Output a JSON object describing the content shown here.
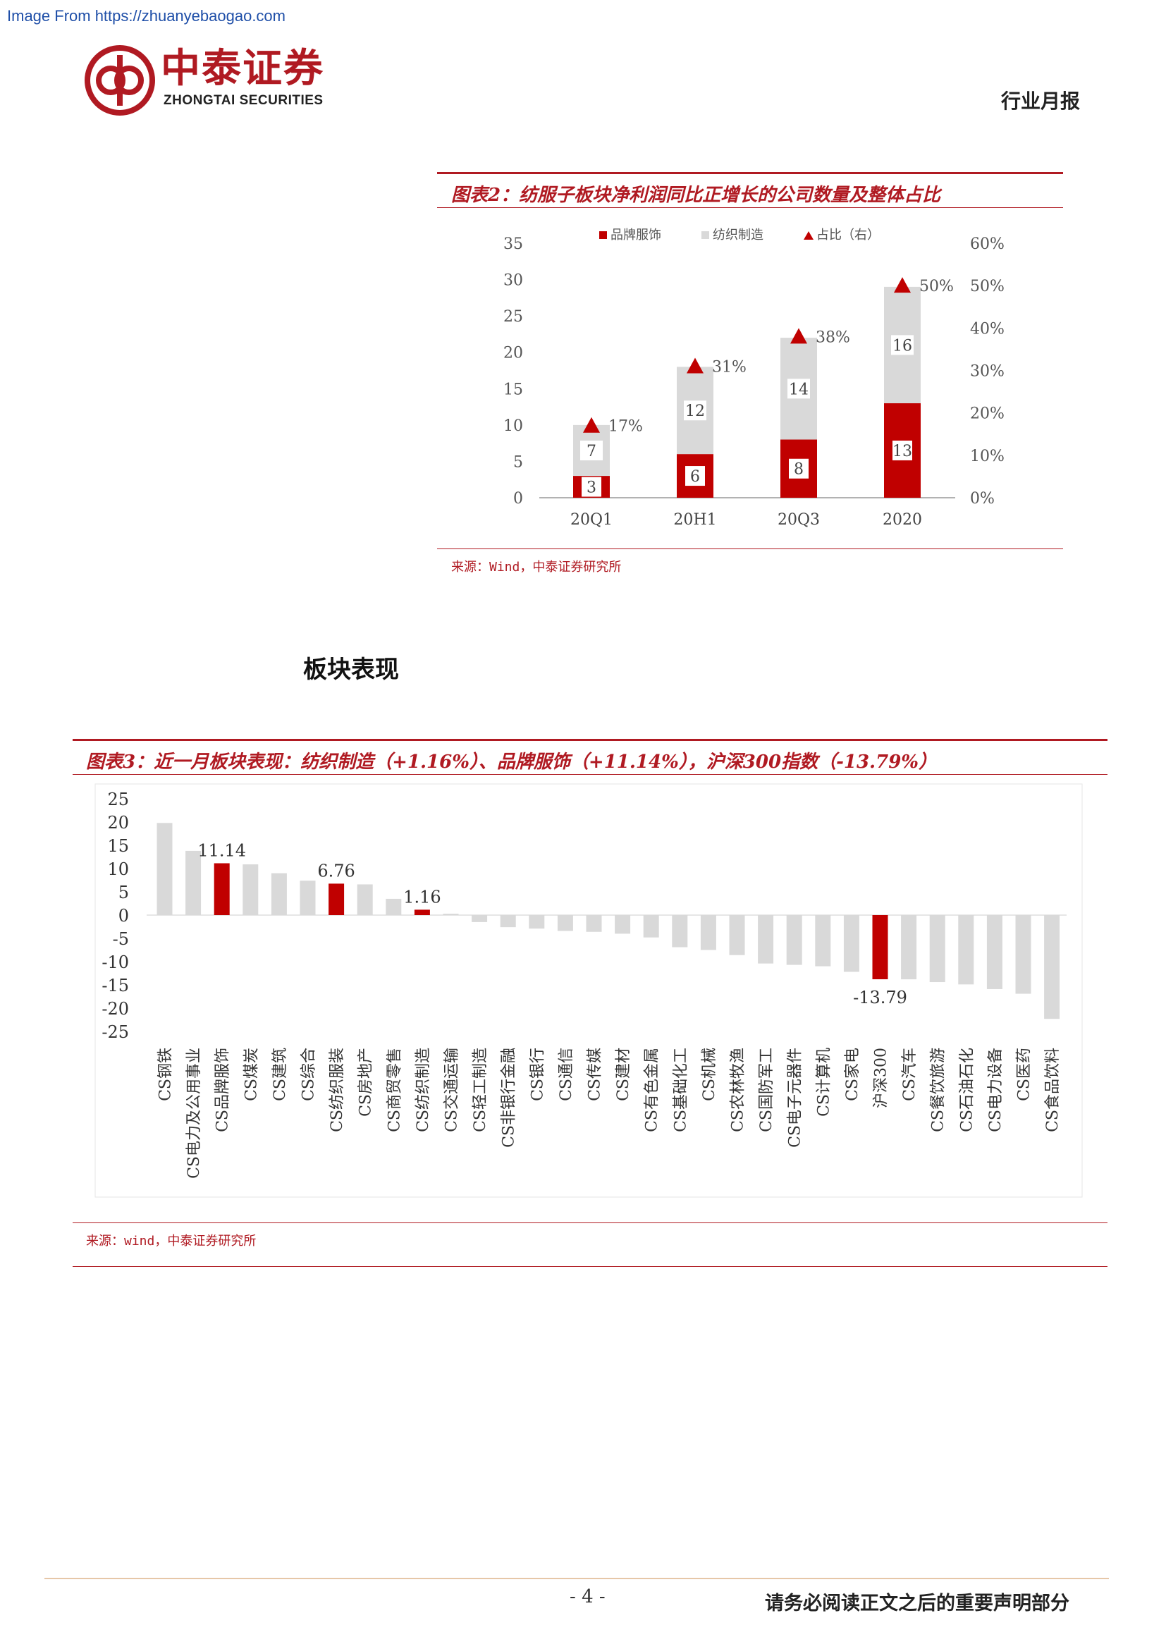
{
  "header": {
    "source_url": "Image From https://zhuanyebaogao.com",
    "logo_cn": "中泰证券",
    "logo_en": "ZHONGTAI SECURITIES",
    "report_type": "行业月报"
  },
  "figure2": {
    "title": "图表2：纺服子板块净利润同比正增长的公司数量及整体占比",
    "source": "来源：Wind，中泰证券研究所",
    "legend": [
      "品牌服饰",
      "纺织制造",
      "占比（右）"
    ],
    "left_ticks": [
      "0",
      "5",
      "10",
      "15",
      "20",
      "25",
      "30",
      "35"
    ],
    "right_ticks": [
      "0%",
      "10%",
      "20%",
      "30%",
      "40%",
      "50%",
      "60%"
    ]
  },
  "section_heading": "板块表现",
  "figure3": {
    "title": "图表3：近一月板块表现：纺织制造（+1.16%）、品牌服饰（+11.14%），沪深300指数（-13.79%）",
    "source": "来源：wind，中泰证券研究所",
    "ticks": [
      "25",
      "20",
      "15",
      "10",
      "5",
      "0",
      "-5",
      "-10",
      "-15",
      "-20",
      "-25"
    ]
  },
  "chart_data": [
    {
      "type": "bar",
      "stacked": true,
      "categories": [
        "20Q1",
        "20H1",
        "20Q3",
        "2020"
      ],
      "series": [
        {
          "name": "品牌服饰",
          "values": [
            3,
            6,
            8,
            13
          ],
          "color": "#c00000"
        },
        {
          "name": "纺织制造",
          "values": [
            7,
            12,
            14,
            16
          ],
          "color": "#d9d9d9"
        },
        {
          "name": "占比（右）",
          "values": [
            17,
            31,
            38,
            50
          ],
          "labels": [
            "17%",
            "31%",
            "38%",
            "50%"
          ],
          "axis": "right",
          "marker": "triangle",
          "color": "#c00000"
        }
      ],
      "ylim": [
        0,
        35
      ],
      "y2lim": [
        0,
        60
      ],
      "legend": "top"
    },
    {
      "type": "bar",
      "categories": [
        "CS钢铁",
        "CS电力及公用事业",
        "CS品牌服饰",
        "CS煤炭",
        "CS建筑",
        "CS综合",
        "CS纺织服装",
        "CS房地产",
        "CS商贸零售",
        "CS纺织制造",
        "CS交通运输",
        "CS轻工制造",
        "CS非银行金融",
        "CS银行",
        "CS通信",
        "CS传媒",
        "CS建材",
        "CS有色金属",
        "CS基础化工",
        "CS机械",
        "CS农林牧渔",
        "CS国防军工",
        "CS电子元器件",
        "CS计算机",
        "CS家电",
        "沪深300",
        "CS汽车",
        "CS餐饮旅游",
        "CS石油石化",
        "CS电力设备",
        "CS医药",
        "CS食品饮料"
      ],
      "values": [
        19.8,
        13.8,
        11.14,
        10.9,
        9.0,
        7.4,
        6.76,
        6.6,
        3.5,
        1.16,
        0.3,
        -1.5,
        -2.6,
        -2.9,
        -3.4,
        -3.6,
        -4.0,
        -4.8,
        -6.9,
        -7.5,
        -8.6,
        -10.4,
        -10.7,
        -11.0,
        -12.2,
        -13.79,
        -13.8,
        -14.4,
        -14.9,
        -15.9,
        -16.9,
        -22.3
      ],
      "highlight": [
        "CS品牌服饰",
        "CS纺织服装",
        "CS纺织制造",
        "沪深300"
      ],
      "data_labels": {
        "CS品牌服饰": "11.14",
        "CS纺织服装": "6.76",
        "CS纺织制造": "1.16",
        "沪深300": "-13.79"
      },
      "ylim": [
        -25,
        25
      ]
    }
  ]
}
